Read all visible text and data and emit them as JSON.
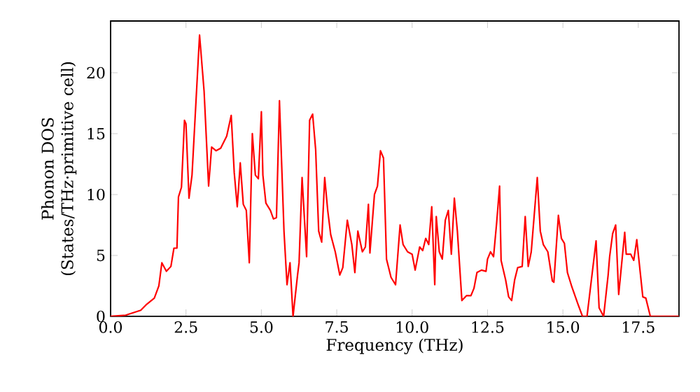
{
  "chart_data": {
    "type": "line",
    "xlabel": "Frequency (THz)",
    "ylabel": "Phonon DOS\n(States/THz·primitive cell)",
    "xlim": [
      0,
      18.85
    ],
    "ylim": [
      0,
      24.25
    ],
    "xticks": [
      {
        "value": 0,
        "label": "0.0"
      },
      {
        "value": 2.5,
        "label": "2.5"
      },
      {
        "value": 5,
        "label": "5.0"
      },
      {
        "value": 7.5,
        "label": "7.5"
      },
      {
        "value": 10,
        "label": "10.0"
      },
      {
        "value": 12.5,
        "label": "12.5"
      },
      {
        "value": 15,
        "label": "15.0"
      },
      {
        "value": 17.5,
        "label": "17.5"
      }
    ],
    "yticks": [
      0,
      5,
      10,
      15,
      20
    ],
    "marker": "none",
    "line_style": "solid",
    "series": [
      {
        "color": "#ff0000",
        "x": [
          0,
          0.5,
          1.0,
          1.2,
          1.45,
          1.6,
          1.7,
          1.85,
          2.0,
          2.1,
          2.2,
          2.25,
          2.35,
          2.45,
          2.5,
          2.6,
          2.7,
          2.95,
          3.1,
          3.25,
          3.35,
          3.5,
          3.65,
          3.85,
          4.0,
          4.1,
          4.2,
          4.3,
          4.4,
          4.5,
          4.6,
          4.7,
          4.8,
          4.9,
          5.0,
          5.05,
          5.15,
          5.3,
          5.4,
          5.5,
          5.6,
          5.75,
          5.85,
          5.95,
          6.05,
          6.2,
          6.25,
          6.35,
          6.5,
          6.6,
          6.7,
          6.8,
          6.9,
          7.0,
          7.1,
          7.2,
          7.3,
          7.45,
          7.6,
          7.7,
          7.85,
          8.0,
          8.1,
          8.2,
          8.35,
          8.45,
          8.55,
          8.6,
          8.75,
          8.85,
          8.95,
          9.05,
          9.15,
          9.3,
          9.45,
          9.6,
          9.7,
          9.85,
          10.0,
          10.1,
          10.25,
          10.35,
          10.45,
          10.55,
          10.65,
          10.75,
          10.8,
          10.9,
          11.0,
          11.1,
          11.2,
          11.3,
          11.4,
          11.5,
          11.65,
          11.8,
          11.95,
          12.05,
          12.15,
          12.3,
          12.45,
          12.5,
          12.6,
          12.7,
          12.8,
          12.9,
          12.95,
          13.1,
          13.2,
          13.3,
          13.4,
          13.5,
          13.65,
          13.75,
          13.85,
          13.95,
          14.15,
          14.25,
          14.35,
          14.5,
          14.65,
          14.7,
          14.85,
          14.95,
          15.05,
          15.15,
          15.3,
          15.5,
          15.65,
          15.8,
          16.1,
          16.2,
          16.35,
          16.5,
          16.55,
          16.65,
          16.75,
          16.85,
          17.05,
          17.1,
          17.25,
          17.35,
          17.45,
          17.65,
          17.75,
          17.9,
          18.85
        ],
        "values": [
          0,
          0.1,
          0.5,
          1.0,
          1.5,
          2.5,
          4.4,
          3.7,
          4.1,
          5.6,
          5.6,
          9.8,
          10.6,
          16.1,
          15.8,
          9.7,
          11.6,
          23.1,
          18.5,
          10.7,
          13.9,
          13.6,
          13.8,
          14.8,
          16.5,
          11.8,
          9.0,
          12.6,
          9.2,
          8.7,
          4.4,
          15.0,
          11.6,
          11.3,
          16.8,
          11.6,
          9.3,
          8.7,
          8.0,
          8.1,
          17.7,
          7.0,
          2.6,
          4.4,
          0,
          3.4,
          4.4,
          11.4,
          4.9,
          16.1,
          16.6,
          13.7,
          7.0,
          6.1,
          11.4,
          8.7,
          6.7,
          5.3,
          3.4,
          4.0,
          7.9,
          5.9,
          3.6,
          7.0,
          5.3,
          5.7,
          9.2,
          5.2,
          10.0,
          10.7,
          13.6,
          13.0,
          4.7,
          3.2,
          2.6,
          7.5,
          5.9,
          5.3,
          5.1,
          3.8,
          5.7,
          5.4,
          6.4,
          5.9,
          9.0,
          2.6,
          8.2,
          5.3,
          4.7,
          7.9,
          8.7,
          5.1,
          9.7,
          7.0,
          1.3,
          1.7,
          1.7,
          2.3,
          3.6,
          3.8,
          3.7,
          4.7,
          5.3,
          4.9,
          7.6,
          10.7,
          4.6,
          3.0,
          1.6,
          1.3,
          3.0,
          4.0,
          4.1,
          8.2,
          4.1,
          5.3,
          11.4,
          7.0,
          5.9,
          5.3,
          2.9,
          2.8,
          8.3,
          6.4,
          6.0,
          3.6,
          2.4,
          1.0,
          0,
          0,
          6.2,
          0.7,
          0,
          3.4,
          4.9,
          6.8,
          7.5,
          1.8,
          6.9,
          5.1,
          5.1,
          4.6,
          6.3,
          1.6,
          1.5,
          0,
          0
        ]
      }
    ]
  }
}
